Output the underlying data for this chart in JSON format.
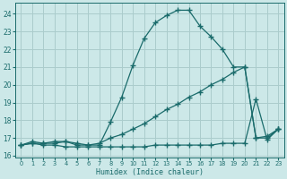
{
  "line1_x": [
    0,
    1,
    2,
    3,
    4,
    5,
    6,
    7,
    8,
    9,
    10,
    11,
    12,
    13,
    14,
    15,
    16,
    17,
    18,
    19,
    20,
    21,
    22,
    23
  ],
  "line1_y": [
    16.6,
    16.8,
    16.7,
    16.7,
    16.8,
    16.6,
    16.6,
    16.6,
    17.9,
    19.3,
    21.1,
    22.6,
    23.5,
    23.9,
    24.2,
    24.2,
    23.3,
    22.7,
    22.0,
    21.0,
    21.0,
    17.0,
    17.0,
    17.5
  ],
  "line2_x": [
    0,
    1,
    2,
    3,
    4,
    5,
    6,
    7,
    8,
    9,
    10,
    11,
    12,
    13,
    14,
    15,
    16,
    17,
    18,
    19,
    20,
    21,
    22,
    23
  ],
  "line2_y": [
    16.6,
    16.7,
    16.7,
    16.8,
    16.8,
    16.7,
    16.6,
    16.7,
    17.0,
    17.2,
    17.5,
    17.8,
    18.2,
    18.6,
    18.9,
    19.3,
    19.6,
    20.0,
    20.3,
    20.7,
    21.0,
    17.0,
    17.1,
    17.5
  ],
  "line3_x": [
    0,
    1,
    2,
    3,
    4,
    5,
    6,
    7,
    8,
    9,
    10,
    11,
    12,
    13,
    14,
    15,
    16,
    17,
    18,
    19,
    20,
    21,
    22,
    23
  ],
  "line3_y": [
    16.6,
    16.7,
    16.6,
    16.6,
    16.5,
    16.5,
    16.5,
    16.5,
    16.5,
    16.5,
    16.5,
    16.5,
    16.6,
    16.6,
    16.6,
    16.6,
    16.6,
    16.6,
    16.7,
    16.7,
    16.7,
    19.2,
    16.9,
    17.5
  ],
  "line_color": "#1a6b6b",
  "bg_color": "#cce8e8",
  "grid_color": "#aacccc",
  "xlabel": "Humidex (Indice chaleur)",
  "ylim": [
    15.9,
    24.6
  ],
  "xlim": [
    -0.5,
    23.5
  ],
  "yticks": [
    16,
    17,
    18,
    19,
    20,
    21,
    22,
    23,
    24
  ],
  "xticks": [
    0,
    1,
    2,
    3,
    4,
    5,
    6,
    7,
    8,
    9,
    10,
    11,
    12,
    13,
    14,
    15,
    16,
    17,
    18,
    19,
    20,
    21,
    22,
    23
  ],
  "marker": "+",
  "markersize": 4.0,
  "linewidth": 0.9
}
